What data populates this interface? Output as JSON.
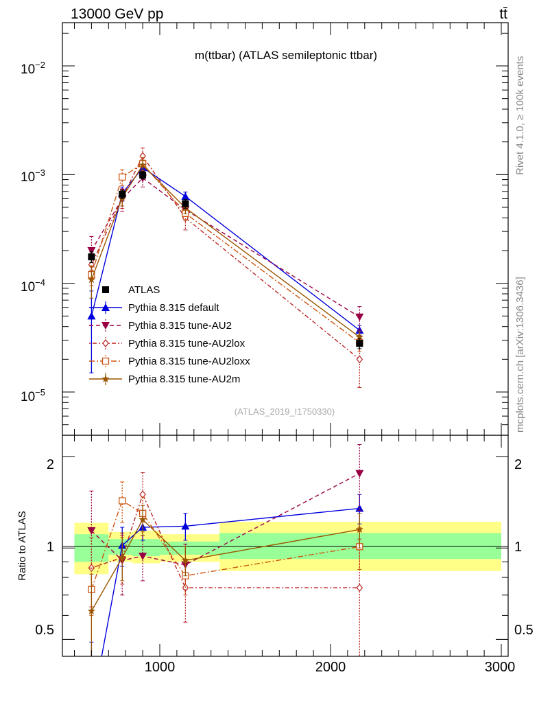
{
  "header": {
    "left": "13000 GeV pp",
    "right": "tt̄"
  },
  "side_labels": {
    "rivet": "Rivet 4.1.0, ≥ 100k events",
    "source": "mcplots.cern.ch [arXiv:1306.3436]"
  },
  "colors": {
    "atlas": "#000000",
    "default": "#0000dd",
    "au2": "#990044",
    "au2lox": "#bb2222",
    "au2loxx": "#cc5511",
    "au2m": "#995500",
    "band_outer": "#ffff88",
    "band_inner": "#99ff99"
  },
  "chart_data": [
    {
      "name": "main",
      "type": "line",
      "title": "m(ttbar) (ATLAS semileptonic ttbar)",
      "analysis_id": "(ATLAS_2019_I1750330)",
      "yscale": "log",
      "xlim": [
        450,
        3000
      ],
      "ylim": [
        4e-06,
        0.025
      ],
      "y_tick_labels": [
        "10^-5",
        "10^-4",
        "10^-3",
        "10^-2"
      ],
      "x": [
        600,
        780,
        900,
        1150,
        2170
      ],
      "series": [
        {
          "name": "ATLAS",
          "style": "data",
          "marker": "square",
          "values": [
            0.000175,
            0.00066,
            0.00099,
            0.00054,
            2.8e-05
          ],
          "err_lo": [
            2e-05,
            6e-05,
            8e-05,
            5e-05,
            3e-06
          ],
          "err_hi": [
            2e-05,
            6e-05,
            8e-05,
            5e-05,
            3e-06
          ]
        },
        {
          "name": "Pythia 8.315 default",
          "style": "solid",
          "marker": "triangle-up",
          "values": [
            5e-05,
            0.00067,
            0.00116,
            0.00063,
            3.7e-05
          ],
          "err_lo": [
            3.5e-05,
            0.0001,
            0.00011,
            6e-05,
            4e-06
          ],
          "err_hi": [
            3.5e-05,
            0.0001,
            0.00011,
            6e-05,
            4e-06
          ]
        },
        {
          "name": "Pythia 8.315 tune-AU2",
          "style": "dashed",
          "marker": "triangle-down",
          "values": [
            0.0002,
            0.0006,
            0.00093,
            0.000475,
            4.9e-05
          ],
          "err_lo": [
            7e-05,
            0.00014,
            0.00016,
            8e-05,
            1.2e-05
          ],
          "err_hi": [
            7e-05,
            0.00014,
            0.00016,
            8e-05,
            1.2e-05
          ]
        },
        {
          "name": "Pythia 8.315 tune-AU2lox",
          "style": "dotdash",
          "marker": "diamond",
          "values": [
            0.000148,
            0.00061,
            0.00148,
            0.0004,
            2e-05
          ],
          "err_lo": [
            4e-05,
            0.00012,
            0.00028,
            9e-05,
            9e-06
          ],
          "err_hi": [
            4e-05,
            0.00012,
            0.00028,
            9e-05,
            9e-06
          ]
        },
        {
          "name": "Pythia 8.315 tune-AU2loxx",
          "style": "dashdot",
          "marker": "square-open",
          "values": [
            0.00012,
            0.00095,
            0.00126,
            0.00044,
            2.85e-05
          ],
          "err_lo": [
            2.5e-05,
            0.00016,
            0.00018,
            6e-05,
            5e-06
          ],
          "err_hi": [
            2.5e-05,
            0.00016,
            0.00018,
            6e-05,
            5e-06
          ]
        },
        {
          "name": "Pythia 8.315 tune-AU2m",
          "style": "solid",
          "marker": "star",
          "values": [
            0.000108,
            0.000615,
            0.00122,
            0.000495,
            3.2e-05
          ],
          "err_lo": [
            3.5e-05,
            0.0001,
            0.00014,
            6e-05,
            4e-06
          ],
          "err_hi": [
            3.5e-05,
            0.0001,
            0.00014,
            6e-05,
            4e-06
          ]
        }
      ],
      "legend_position": "bottom-left"
    },
    {
      "name": "ratio",
      "type": "line",
      "ylabel": "Ratio to ATLAS",
      "yscale": "log",
      "xlim": [
        450,
        3000
      ],
      "ylim": [
        0.44,
        2.35
      ],
      "y_ticks": [
        0.5,
        1,
        2
      ],
      "y_tick_labels": [
        "0.5",
        "1",
        "2"
      ],
      "x_ticks": [
        1000,
        2000,
        3000
      ],
      "x_tick_labels": [
        "1000",
        "2000",
        "3000"
      ],
      "reference_line": 1,
      "bands": [
        {
          "x_from": 500,
          "x_to": 700,
          "outer": [
            0.82,
            1.21
          ],
          "inner": [
            0.9,
            1.11
          ]
        },
        {
          "x_from": 700,
          "x_to": 840,
          "outer": [
            0.9,
            1.13
          ],
          "inner": [
            0.95,
            1.07
          ]
        },
        {
          "x_from": 840,
          "x_to": 1000,
          "outer": [
            0.89,
            1.14
          ],
          "inner": [
            0.94,
            1.07
          ]
        },
        {
          "x_from": 1000,
          "x_to": 1350,
          "outer": [
            0.9,
            1.11
          ],
          "inner": [
            0.95,
            1.05
          ]
        },
        {
          "x_from": 1350,
          "x_to": 3000,
          "outer": [
            0.84,
            1.22
          ],
          "inner": [
            0.92,
            1.12
          ]
        }
      ],
      "x": [
        600,
        780,
        900,
        1150,
        2170
      ],
      "series": [
        {
          "name": "Pythia 8.315 default",
          "values": [
            0.29,
            1.02,
            1.17,
            1.18,
            1.35
          ],
          "err_lo": [
            0.2,
            0.15,
            0.11,
            0.12,
            0.15
          ],
          "err_hi": [
            0.2,
            0.15,
            0.11,
            0.12,
            0.15
          ]
        },
        {
          "name": "Pythia 8.315 tune-AU2",
          "values": [
            1.14,
            0.91,
            0.94,
            0.88,
            1.76
          ],
          "err_lo": [
            0.4,
            0.21,
            0.16,
            0.15,
            0.43
          ],
          "err_hi": [
            0.4,
            0.21,
            0.16,
            0.15,
            0.43
          ]
        },
        {
          "name": "Pythia 8.315 tune-AU2lox",
          "values": [
            0.86,
            0.93,
            1.5,
            0.74,
            0.74
          ],
          "err_lo": [
            0.22,
            0.17,
            0.27,
            0.17,
            0.33
          ],
          "err_hi": [
            0.22,
            0.17,
            0.27,
            0.17,
            0.33
          ]
        },
        {
          "name": "Pythia 8.315 tune-AU2loxx",
          "values": [
            0.73,
            1.43,
            1.3,
            0.81,
            1.01
          ],
          "err_lo": [
            0.13,
            0.22,
            0.17,
            0.11,
            0.16
          ],
          "err_hi": [
            0.13,
            0.22,
            0.17,
            0.11,
            0.16
          ]
        },
        {
          "name": "Pythia 8.315 tune-AU2m",
          "values": [
            0.62,
            0.93,
            1.24,
            0.91,
            1.15
          ],
          "err_lo": [
            0.2,
            0.15,
            0.14,
            0.1,
            0.15
          ],
          "err_hi": [
            0.2,
            0.15,
            0.14,
            0.1,
            0.15
          ]
        }
      ]
    }
  ]
}
